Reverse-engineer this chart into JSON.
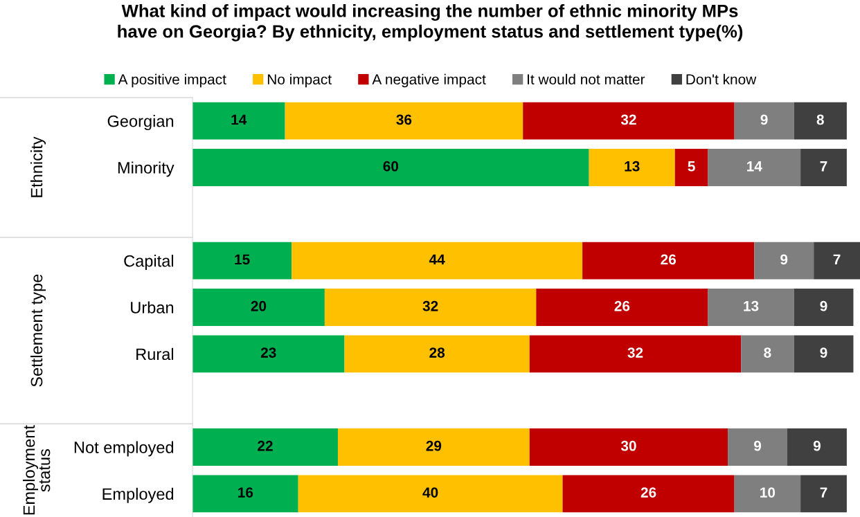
{
  "chart_data": {
    "type": "bar",
    "orientation": "horizontal",
    "stacked": true,
    "title": "What kind of impact would increasing the number of ethnic minority MPs have on Georgia? By ethnicity, employment status and settlement type(%)",
    "categories": [
      "Georgian",
      "Minority",
      null,
      "Capital",
      "Urban",
      "Rural",
      null,
      "Not employed",
      "Employed"
    ],
    "series": [
      {
        "name": "A positive impact",
        "color": "#00b050",
        "values": [
          14,
          60,
          null,
          15,
          20,
          23,
          null,
          22,
          16
        ]
      },
      {
        "name": "No impact",
        "color": "#ffc000",
        "values": [
          36,
          13,
          null,
          44,
          32,
          28,
          null,
          29,
          40
        ]
      },
      {
        "name": "A negative impact",
        "color": "#c00000",
        "values": [
          32,
          5,
          null,
          26,
          26,
          32,
          null,
          30,
          26
        ]
      },
      {
        "name": "It would not matter",
        "color": "#7f7f7f",
        "values": [
          9,
          14,
          null,
          9,
          13,
          8,
          null,
          9,
          10
        ]
      },
      {
        "name": "Don't know",
        "color": "#404040",
        "values": [
          8,
          7,
          null,
          7,
          9,
          9,
          null,
          9,
          7
        ]
      }
    ],
    "data_labels": true,
    "legend": "top",
    "tick_labels": "y",
    "annotations": [
      "Ethnicity",
      "Settlement type",
      "Employment status"
    ]
  }
}
